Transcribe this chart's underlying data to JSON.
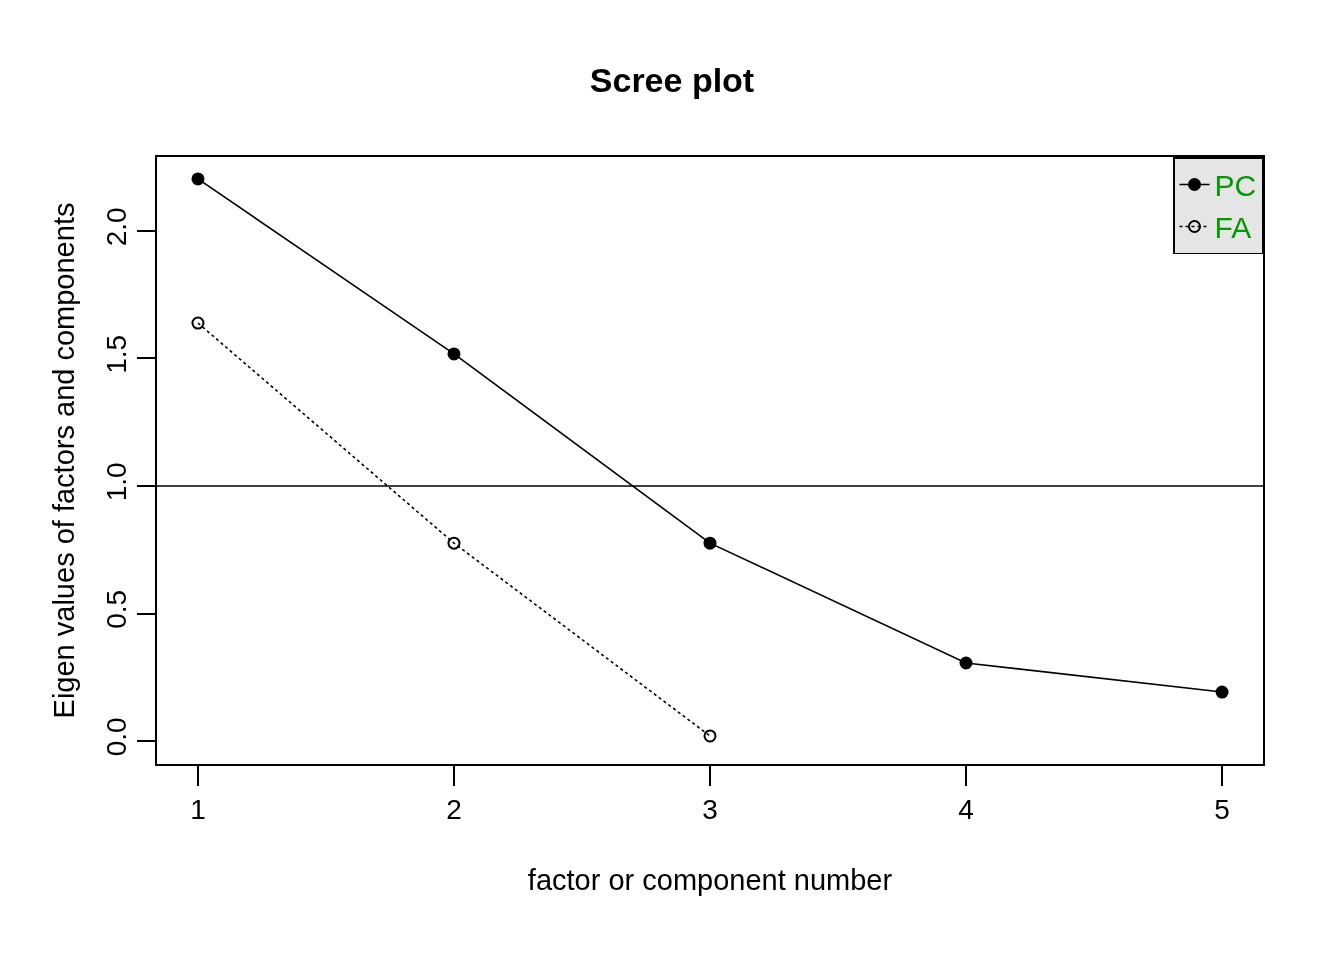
{
  "chart_data": {
    "type": "line",
    "title": "Scree plot",
    "xlabel": "factor or component number",
    "ylabel": "Eigen values of factors and components",
    "x": [
      1,
      2,
      3,
      4,
      5
    ],
    "series": [
      {
        "name": "PC",
        "color": "#000000",
        "values": [
          2.204,
          1.518,
          0.776,
          0.306,
          0.192
        ],
        "marker": "circle",
        "line_style": "solid"
      },
      {
        "name": "FA",
        "color": "#000000",
        "values": [
          1.639,
          0.776,
          0.02,
          null,
          null
        ],
        "marker": "circle",
        "line_style": "dotted"
      }
    ],
    "xlim": [
      0.84,
      5.16
    ],
    "xticks": [
      1,
      2,
      3,
      4,
      5
    ],
    "ylim": [
      -0.09,
      2.29
    ],
    "yticks": [
      {
        "value": 0,
        "label": "0.0"
      },
      {
        "value": 0.5,
        "label": "0.5"
      },
      {
        "value": 1,
        "label": "1.0"
      },
      {
        "value": 1.5,
        "label": "1.5"
      },
      {
        "value": 2,
        "label": "2.0"
      }
    ],
    "ref_lines": [
      {
        "axis": "y",
        "value": 1,
        "label": null,
        "color": "#000000",
        "line_style": "solid"
      }
    ],
    "grid": false,
    "legend": "top right"
  }
}
